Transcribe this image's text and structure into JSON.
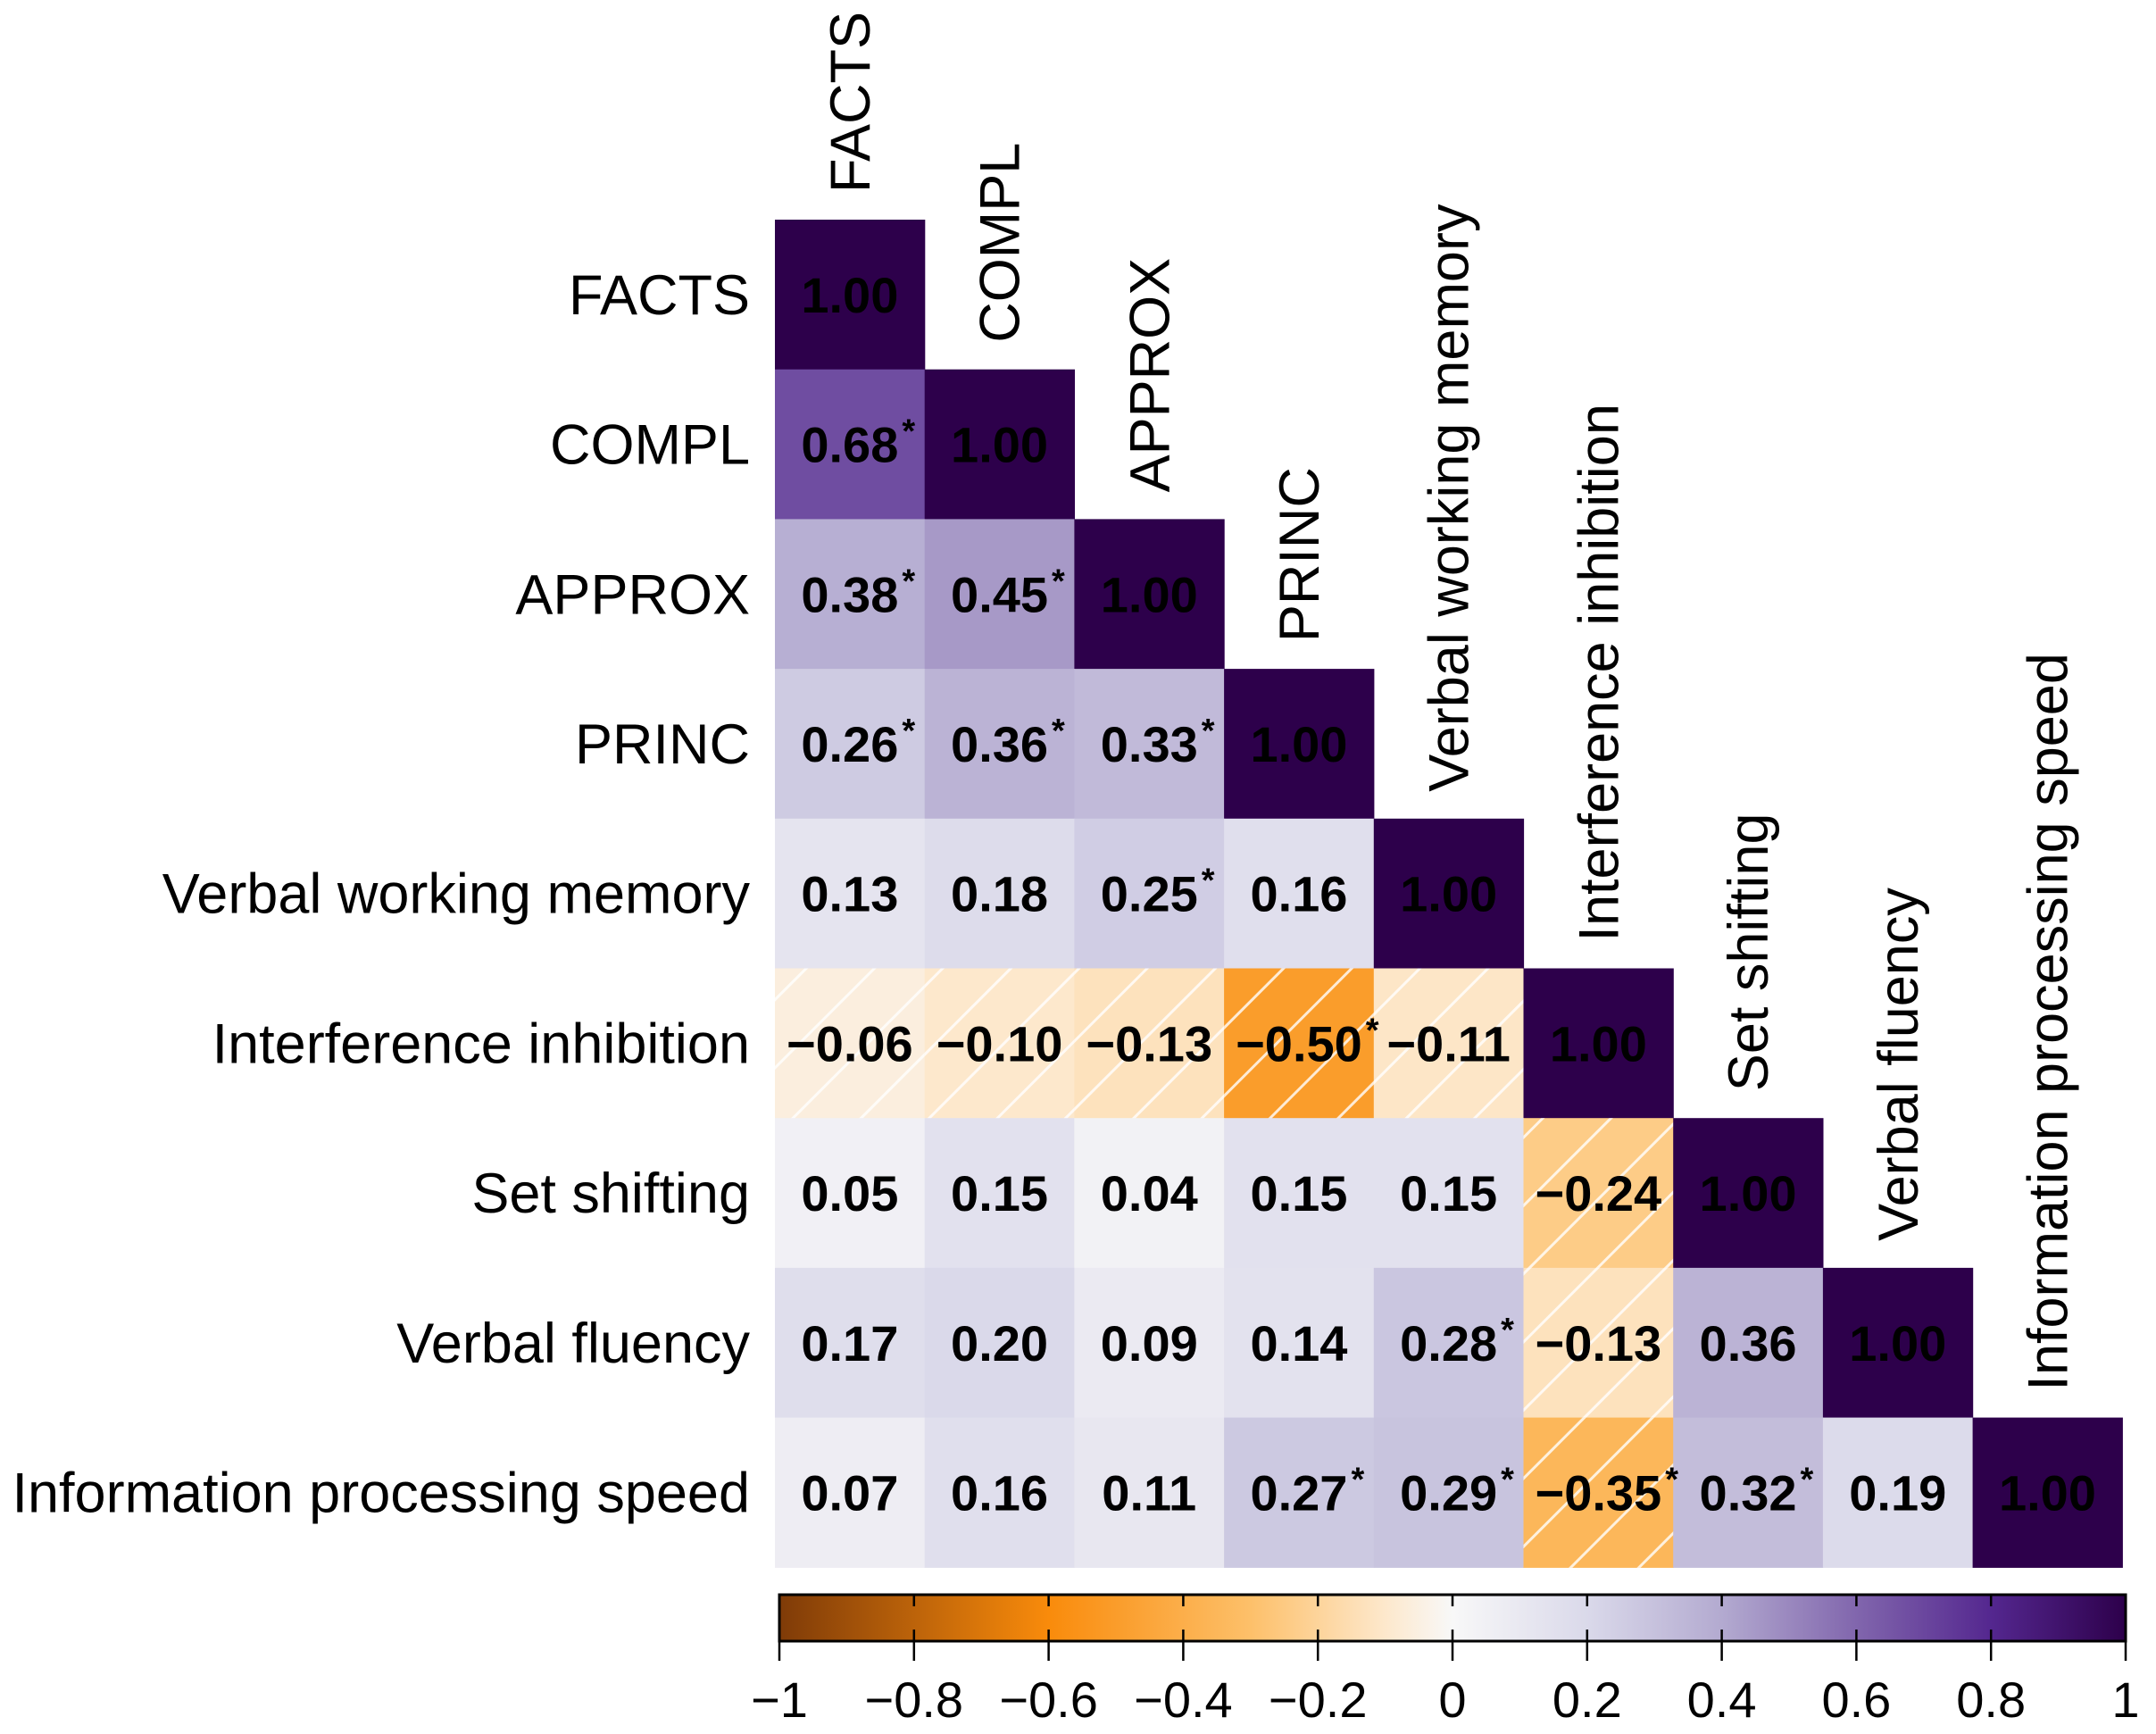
{
  "chart_data": {
    "type": "heatmap",
    "subtype": "lower-triangular correlation matrix",
    "variables": [
      "FACTS",
      "COMPL",
      "APPROX",
      "PRINC",
      "Verbal working memory",
      "Interference inhibition",
      "Set shifting",
      "Verbal fluency",
      "Information processing speed"
    ],
    "matrix": [
      [
        1.0
      ],
      [
        0.68,
        1.0
      ],
      [
        0.38,
        0.45,
        1.0
      ],
      [
        0.26,
        0.36,
        0.33,
        1.0
      ],
      [
        0.13,
        0.18,
        0.25,
        0.16,
        1.0
      ],
      [
        -0.06,
        -0.1,
        -0.13,
        -0.5,
        -0.11,
        1.0
      ],
      [
        0.05,
        0.15,
        0.04,
        0.15,
        0.15,
        -0.24,
        1.0
      ],
      [
        0.17,
        0.2,
        0.09,
        0.14,
        0.28,
        -0.13,
        0.36,
        1.0
      ],
      [
        0.07,
        0.16,
        0.11,
        0.27,
        0.29,
        -0.35,
        0.32,
        0.19,
        1.0
      ]
    ],
    "labels": [
      [
        "1.00"
      ],
      [
        "0.68",
        "1.00"
      ],
      [
        "0.38",
        "0.45",
        "1.00"
      ],
      [
        "0.26",
        "0.36",
        "0.33",
        "1.00"
      ],
      [
        "0.13",
        "0.18",
        "0.25",
        "0.16",
        "1.00"
      ],
      [
        "−0.06",
        "−0.10",
        "−0.13",
        "−0.50",
        "−0.11",
        "1.00"
      ],
      [
        "0.05",
        "0.15",
        "0.04",
        "0.15",
        "0.15",
        "−0.24",
        "1.00"
      ],
      [
        "0.17",
        "0.20",
        "0.09",
        "0.14",
        "0.28",
        "−0.13",
        "0.36",
        "1.00"
      ],
      [
        "0.07",
        "0.16",
        "0.11",
        "0.27",
        "0.29",
        "−0.35",
        "0.32",
        "0.19",
        "1.00"
      ]
    ],
    "significant": [
      [
        false
      ],
      [
        true,
        false
      ],
      [
        true,
        true,
        false
      ],
      [
        true,
        true,
        true,
        false
      ],
      [
        false,
        false,
        true,
        false,
        false
      ],
      [
        false,
        false,
        false,
        true,
        false,
        false
      ],
      [
        false,
        false,
        false,
        false,
        false,
        false,
        false
      ],
      [
        false,
        false,
        false,
        false,
        true,
        false,
        false,
        false
      ],
      [
        false,
        false,
        false,
        true,
        true,
        true,
        true,
        false,
        false
      ]
    ],
    "significance_marker": "*",
    "negative_hatching": true,
    "colorbar": {
      "range": [
        -1,
        1
      ],
      "ticks": [
        -1,
        -0.8,
        -0.6,
        -0.4,
        -0.2,
        0,
        0.2,
        0.4,
        0.6,
        0.8,
        1
      ],
      "tick_labels": [
        "−1",
        "−0.8",
        "−0.6",
        "−0.4",
        "−0.2",
        "0",
        "0.2",
        "0.4",
        "0.6",
        "0.8",
        "1"
      ],
      "placement": "bottom",
      "stops": [
        {
          "v": -1.0,
          "color": "#7f3b08"
        },
        {
          "v": -0.6,
          "color": "#f98b0b"
        },
        {
          "v": -0.3,
          "color": "#fdc06a"
        },
        {
          "v": -0.1,
          "color": "#fde8cc"
        },
        {
          "v": 0.0,
          "color": "#f8f8f8"
        },
        {
          "v": 0.2,
          "color": "#dad9ea"
        },
        {
          "v": 0.4,
          "color": "#b3aad0"
        },
        {
          "v": 0.6,
          "color": "#8166ad"
        },
        {
          "v": 0.8,
          "color": "#54278f"
        },
        {
          "v": 1.0,
          "color": "#2d004b"
        }
      ]
    }
  }
}
